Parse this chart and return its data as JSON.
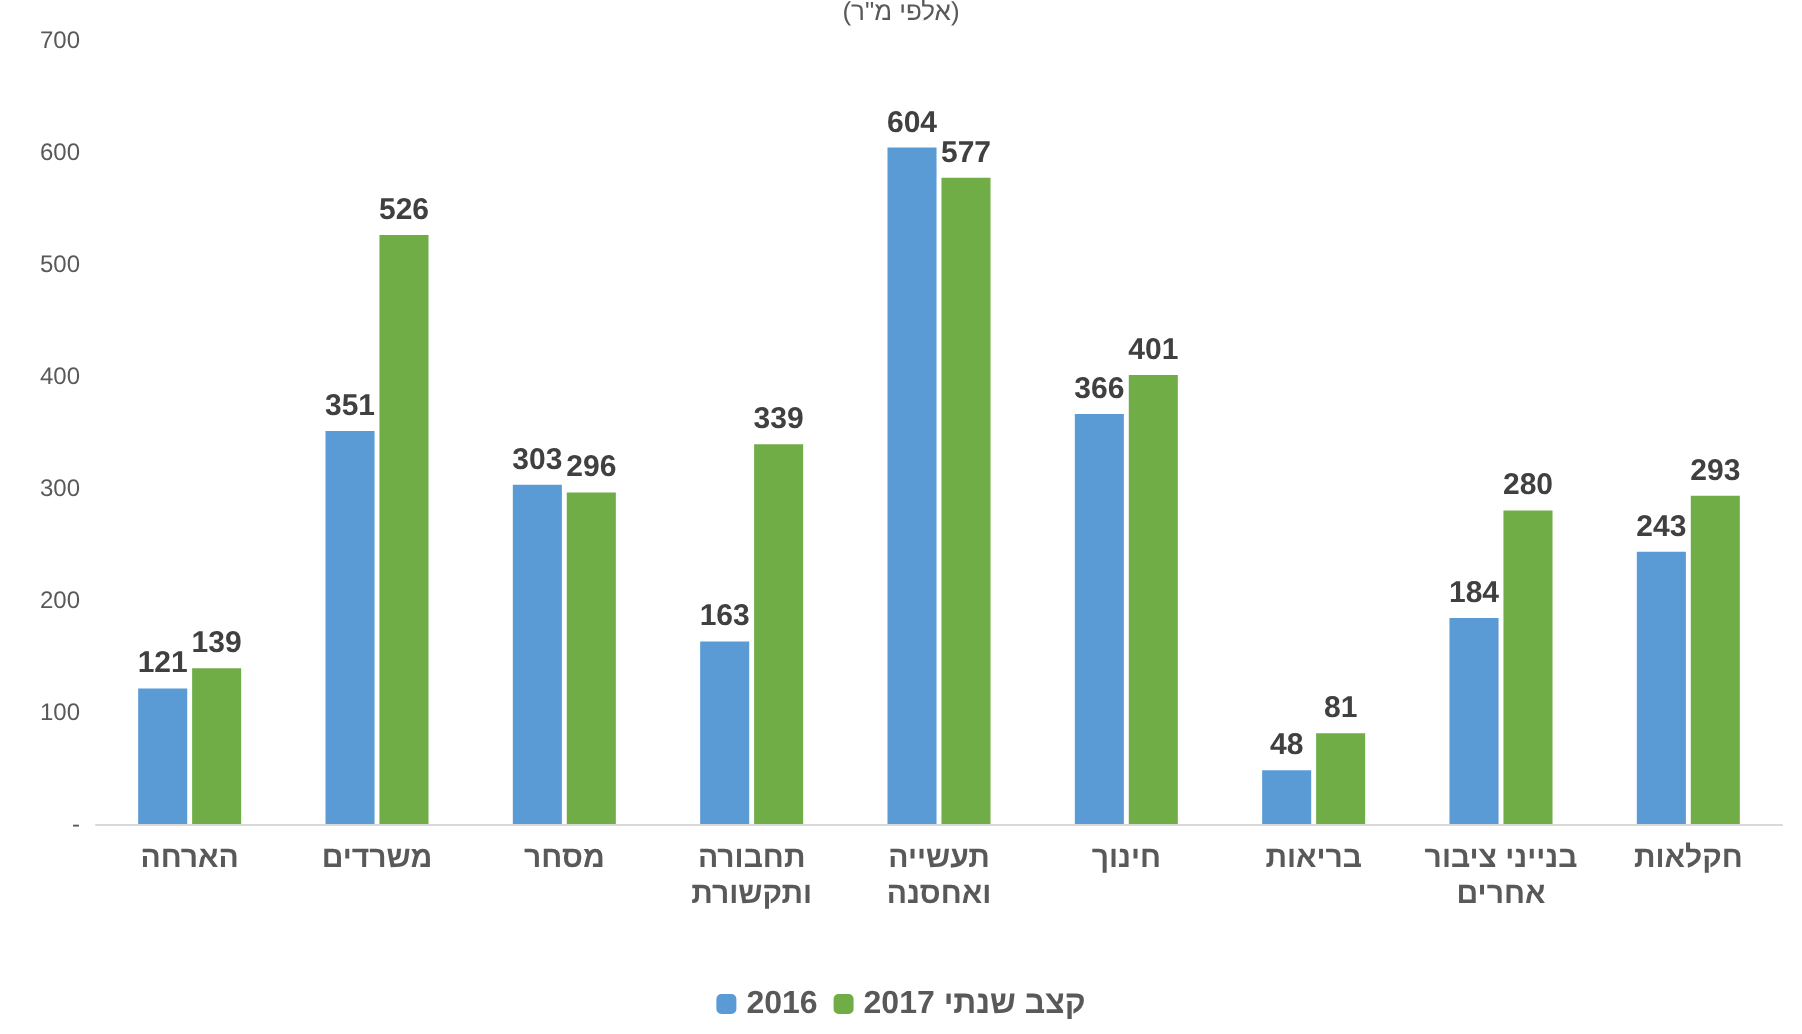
{
  "chart_data": {
    "type": "bar",
    "title": "(אלפי מ\"ר)",
    "categories": [
      "הארחה",
      "משרדים",
      "מסחר",
      "תחבורה\nותקשורת",
      "תעשייה\nואחסנה",
      "חינוך",
      "בריאות",
      "בנייני ציבור\nאחרים",
      "חקלאות"
    ],
    "series": [
      {
        "name": "2016",
        "color": "#5b9bd5",
        "values": [
          121,
          351,
          303,
          163,
          604,
          366,
          48,
          184,
          243
        ]
      },
      {
        "name": "קצב שנתי 2017",
        "color": "#70ad47",
        "values": [
          139,
          526,
          296,
          339,
          577,
          401,
          81,
          280,
          293
        ]
      }
    ],
    "ylim": [
      0,
      700
    ],
    "yticks": [
      {
        "value": 0,
        "label": "-"
      },
      100,
      200,
      300,
      400,
      500,
      600,
      700
    ],
    "data_labels": true,
    "grid": false,
    "legend": "bottom"
  }
}
